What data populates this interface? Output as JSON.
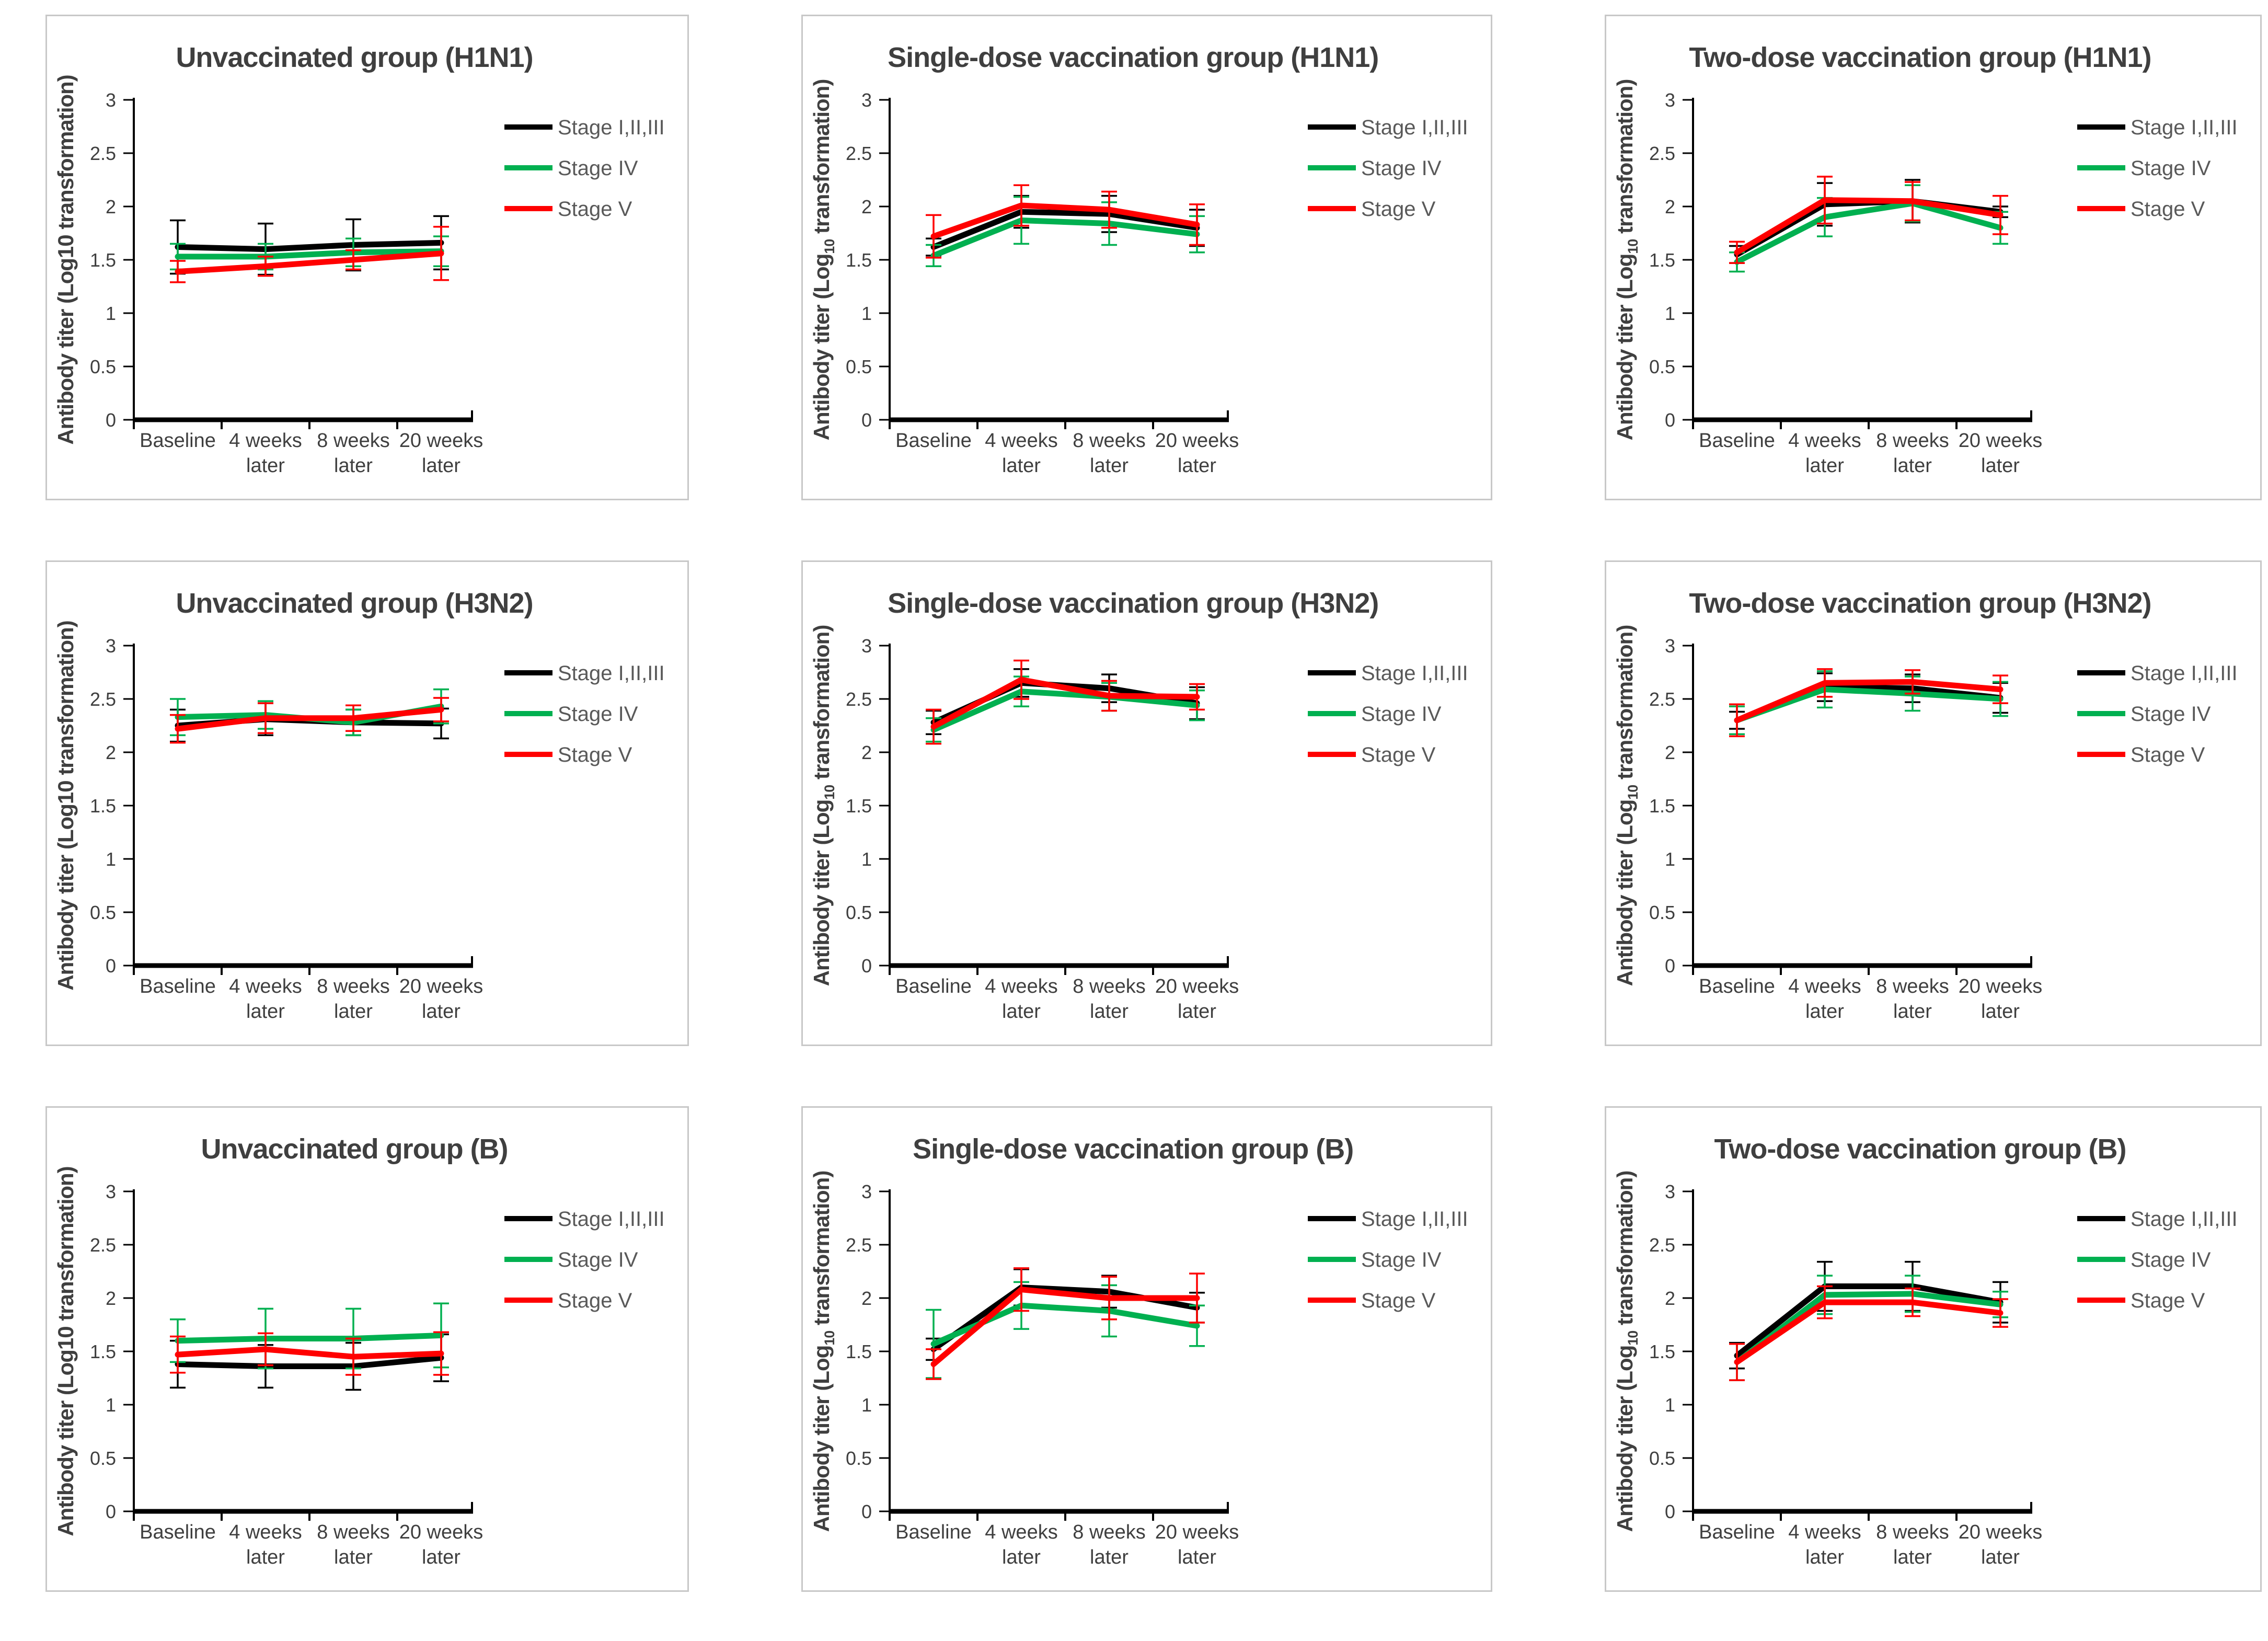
{
  "figure": {
    "ylabel": {
      "pre": "Antibody titer (Log",
      "sub": "10",
      "post": " transformation)"
    },
    "y_ticks": [
      "0",
      "0.5",
      "1",
      "1.5",
      "2",
      "2.5",
      "3"
    ],
    "x_tick_labels": [
      [
        "Baseline",
        ""
      ],
      [
        "4 weeks",
        "later"
      ],
      [
        "8 weeks",
        "later"
      ],
      [
        "20 weeks",
        "later"
      ]
    ],
    "legend": [
      {
        "label": "Stage I,II,III",
        "key": "stage-i-ii-iii",
        "color": "#000000"
      },
      {
        "label": "Stage IV",
        "key": "stage-iv",
        "color": "#00B050"
      },
      {
        "label": "Stage V",
        "key": "stage-v",
        "color": "#FF0000"
      }
    ],
    "colors": {
      "text": "#3f3f3f",
      "legend_text": "#595959",
      "axis": "#000000",
      "panel_border": "#c8c8c8",
      "background": "#ffffff"
    }
  },
  "chart_data": [
    {
      "type": "line",
      "title": "Unvaccinated group (H1N1)",
      "log10_subscript": false,
      "ylim": [
        0,
        3
      ],
      "categories": [
        "Baseline",
        "4 weeks later",
        "8 weeks later",
        "20 weeks later"
      ],
      "series": [
        {
          "name": "Stage I,II,III",
          "key": "stage-i-ii-iii",
          "color": "#000000",
          "values": [
            1.62,
            1.6,
            1.64,
            1.66
          ],
          "err": [
            0.25,
            0.24,
            0.24,
            0.25
          ]
        },
        {
          "name": "Stage IV",
          "key": "stage-iv",
          "color": "#00B050",
          "values": [
            1.53,
            1.53,
            1.57,
            1.58
          ],
          "err": [
            0.12,
            0.12,
            0.13,
            0.14
          ]
        },
        {
          "name": "Stage V",
          "key": "stage-v",
          "color": "#FF0000",
          "values": [
            1.39,
            1.44,
            1.5,
            1.56
          ],
          "err": [
            0.1,
            0.09,
            0.09,
            0.25
          ]
        }
      ]
    },
    {
      "type": "line",
      "title": "Single-dose vaccination group (H1N1)",
      "log10_subscript": true,
      "ylim": [
        0,
        3
      ],
      "categories": [
        "Baseline",
        "4 weeks later",
        "8 weeks later",
        "20 weeks later"
      ],
      "series": [
        {
          "name": "Stage I,II,III",
          "key": "stage-i-ii-iii",
          "color": "#000000",
          "values": [
            1.62,
            1.95,
            1.93,
            1.8
          ],
          "err": [
            0.08,
            0.15,
            0.17,
            0.17
          ]
        },
        {
          "name": "Stage IV",
          "key": "stage-iv",
          "color": "#00B050",
          "values": [
            1.54,
            1.87,
            1.84,
            1.74
          ],
          "err": [
            0.1,
            0.22,
            0.2,
            0.17
          ]
        },
        {
          "name": "Stage V",
          "key": "stage-v",
          "color": "#FF0000",
          "values": [
            1.72,
            2.01,
            1.97,
            1.83
          ],
          "err": [
            0.2,
            0.19,
            0.17,
            0.19
          ]
        }
      ]
    },
    {
      "type": "line",
      "title": "Two-dose vaccination group (H1N1)",
      "log10_subscript": true,
      "ylim": [
        0,
        3
      ],
      "categories": [
        "Baseline",
        "4 weeks later",
        "8 weeks later",
        "20 weeks later"
      ],
      "series": [
        {
          "name": "Stage I,II,III",
          "key": "stage-i-ii-iii",
          "color": "#000000",
          "values": [
            1.55,
            2.02,
            2.05,
            1.95
          ],
          "err": [
            0.08,
            0.2,
            0.2,
            0.05
          ]
        },
        {
          "name": "Stage IV",
          "key": "stage-iv",
          "color": "#00B050",
          "values": [
            1.48,
            1.9,
            2.03,
            1.8
          ],
          "err": [
            0.09,
            0.18,
            0.17,
            0.15
          ]
        },
        {
          "name": "Stage V",
          "key": "stage-v",
          "color": "#FF0000",
          "values": [
            1.57,
            2.06,
            2.05,
            1.92
          ],
          "err": [
            0.1,
            0.22,
            0.18,
            0.18
          ]
        }
      ]
    },
    {
      "type": "line",
      "title": "Unvaccinated group (H3N2)",
      "log10_subscript": false,
      "ylim": [
        0,
        3
      ],
      "categories": [
        "Baseline",
        "4 weeks later",
        "8 weeks later",
        "20 weeks later"
      ],
      "series": [
        {
          "name": "Stage I,II,III",
          "key": "stage-i-ii-iii",
          "color": "#000000",
          "values": [
            2.25,
            2.31,
            2.28,
            2.27
          ],
          "err": [
            0.15,
            0.15,
            0.12,
            0.14
          ]
        },
        {
          "name": "Stage IV",
          "key": "stage-iv",
          "color": "#00B050",
          "values": [
            2.33,
            2.35,
            2.28,
            2.43
          ],
          "err": [
            0.17,
            0.13,
            0.12,
            0.16
          ]
        },
        {
          "name": "Stage V",
          "key": "stage-v",
          "color": "#FF0000",
          "values": [
            2.22,
            2.32,
            2.32,
            2.4
          ],
          "err": [
            0.13,
            0.14,
            0.12,
            0.11
          ]
        }
      ]
    },
    {
      "type": "line",
      "title": "Single-dose vaccination group (H3N2)",
      "log10_subscript": true,
      "ylim": [
        0,
        3
      ],
      "categories": [
        "Baseline",
        "4 weeks later",
        "8 weeks later",
        "20 weeks later"
      ],
      "series": [
        {
          "name": "Stage I,II,III",
          "key": "stage-i-ii-iii",
          "color": "#000000",
          "values": [
            2.28,
            2.65,
            2.6,
            2.46
          ],
          "err": [
            0.11,
            0.13,
            0.13,
            0.15
          ]
        },
        {
          "name": "Stage IV",
          "key": "stage-iv",
          "color": "#00B050",
          "values": [
            2.21,
            2.57,
            2.52,
            2.44
          ],
          "err": [
            0.11,
            0.14,
            0.13,
            0.14
          ]
        },
        {
          "name": "Stage V",
          "key": "stage-v",
          "color": "#FF0000",
          "values": [
            2.24,
            2.68,
            2.53,
            2.52
          ],
          "err": [
            0.16,
            0.18,
            0.14,
            0.12
          ]
        }
      ]
    },
    {
      "type": "line",
      "title": "Two-dose vaccination group (H3N2)",
      "log10_subscript": true,
      "ylim": [
        0,
        3
      ],
      "categories": [
        "Baseline",
        "4 weeks later",
        "8 weeks later",
        "20 weeks later"
      ],
      "series": [
        {
          "name": "Stage I,II,III",
          "key": "stage-i-ii-iii",
          "color": "#000000",
          "values": [
            2.3,
            2.61,
            2.6,
            2.51
          ],
          "err": [
            0.08,
            0.13,
            0.13,
            0.14
          ]
        },
        {
          "name": "Stage IV",
          "key": "stage-iv",
          "color": "#00B050",
          "values": [
            2.3,
            2.59,
            2.55,
            2.5
          ],
          "err": [
            0.13,
            0.17,
            0.16,
            0.16
          ]
        },
        {
          "name": "Stage V",
          "key": "stage-v",
          "color": "#FF0000",
          "values": [
            2.3,
            2.65,
            2.66,
            2.59
          ],
          "err": [
            0.15,
            0.13,
            0.11,
            0.13
          ]
        }
      ]
    },
    {
      "type": "line",
      "title": "Unvaccinated group (B)",
      "log10_subscript": false,
      "ylim": [
        0,
        3
      ],
      "categories": [
        "Baseline",
        "4 weeks later",
        "8 weeks later",
        "20 weeks later"
      ],
      "series": [
        {
          "name": "Stage I,II,III",
          "key": "stage-i-ii-iii",
          "color": "#000000",
          "values": [
            1.38,
            1.36,
            1.36,
            1.44
          ],
          "err": [
            0.22,
            0.2,
            0.22,
            0.22
          ]
        },
        {
          "name": "Stage IV",
          "key": "stage-iv",
          "color": "#00B050",
          "values": [
            1.6,
            1.62,
            1.62,
            1.65
          ],
          "err": [
            0.2,
            0.28,
            0.28,
            0.3
          ]
        },
        {
          "name": "Stage V",
          "key": "stage-v",
          "color": "#FF0000",
          "values": [
            1.47,
            1.52,
            1.45,
            1.48
          ],
          "err": [
            0.17,
            0.15,
            0.17,
            0.2
          ]
        }
      ]
    },
    {
      "type": "line",
      "title": "Single-dose vaccination group (B)",
      "log10_subscript": true,
      "ylim": [
        0,
        3
      ],
      "categories": [
        "Baseline",
        "4 weeks later",
        "8 weeks later",
        "20 weeks later"
      ],
      "series": [
        {
          "name": "Stage I,II,III",
          "key": "stage-i-ii-iii",
          "color": "#000000",
          "values": [
            1.52,
            2.1,
            2.06,
            1.91
          ],
          "err": [
            0.1,
            0.17,
            0.15,
            0.14
          ]
        },
        {
          "name": "Stage IV",
          "key": "stage-iv",
          "color": "#00B050",
          "values": [
            1.57,
            1.93,
            1.88,
            1.74
          ],
          "err": [
            0.32,
            0.22,
            0.24,
            0.19
          ]
        },
        {
          "name": "Stage V",
          "key": "stage-v",
          "color": "#FF0000",
          "values": [
            1.38,
            2.08,
            2.0,
            2.0
          ],
          "err": [
            0.14,
            0.2,
            0.2,
            0.23
          ]
        }
      ]
    },
    {
      "type": "line",
      "title": "Two-dose vaccination group (B)",
      "log10_subscript": true,
      "ylim": [
        0,
        3
      ],
      "categories": [
        "Baseline",
        "4 weeks later",
        "8 weeks later",
        "20 weeks later"
      ],
      "series": [
        {
          "name": "Stage I,II,III",
          "key": "stage-i-ii-iii",
          "color": "#000000",
          "values": [
            1.46,
            2.11,
            2.11,
            1.96
          ],
          "err": [
            0.12,
            0.23,
            0.23,
            0.19
          ]
        },
        {
          "name": "Stage IV",
          "key": "stage-iv",
          "color": "#00B050",
          "values": [
            1.4,
            2.03,
            2.04,
            1.94
          ],
          "err": [
            0.17,
            0.18,
            0.17,
            0.12
          ]
        },
        {
          "name": "Stage V",
          "key": "stage-v",
          "color": "#FF0000",
          "values": [
            1.4,
            1.96,
            1.96,
            1.86
          ],
          "err": [
            0.17,
            0.15,
            0.13,
            0.13
          ]
        }
      ]
    }
  ]
}
